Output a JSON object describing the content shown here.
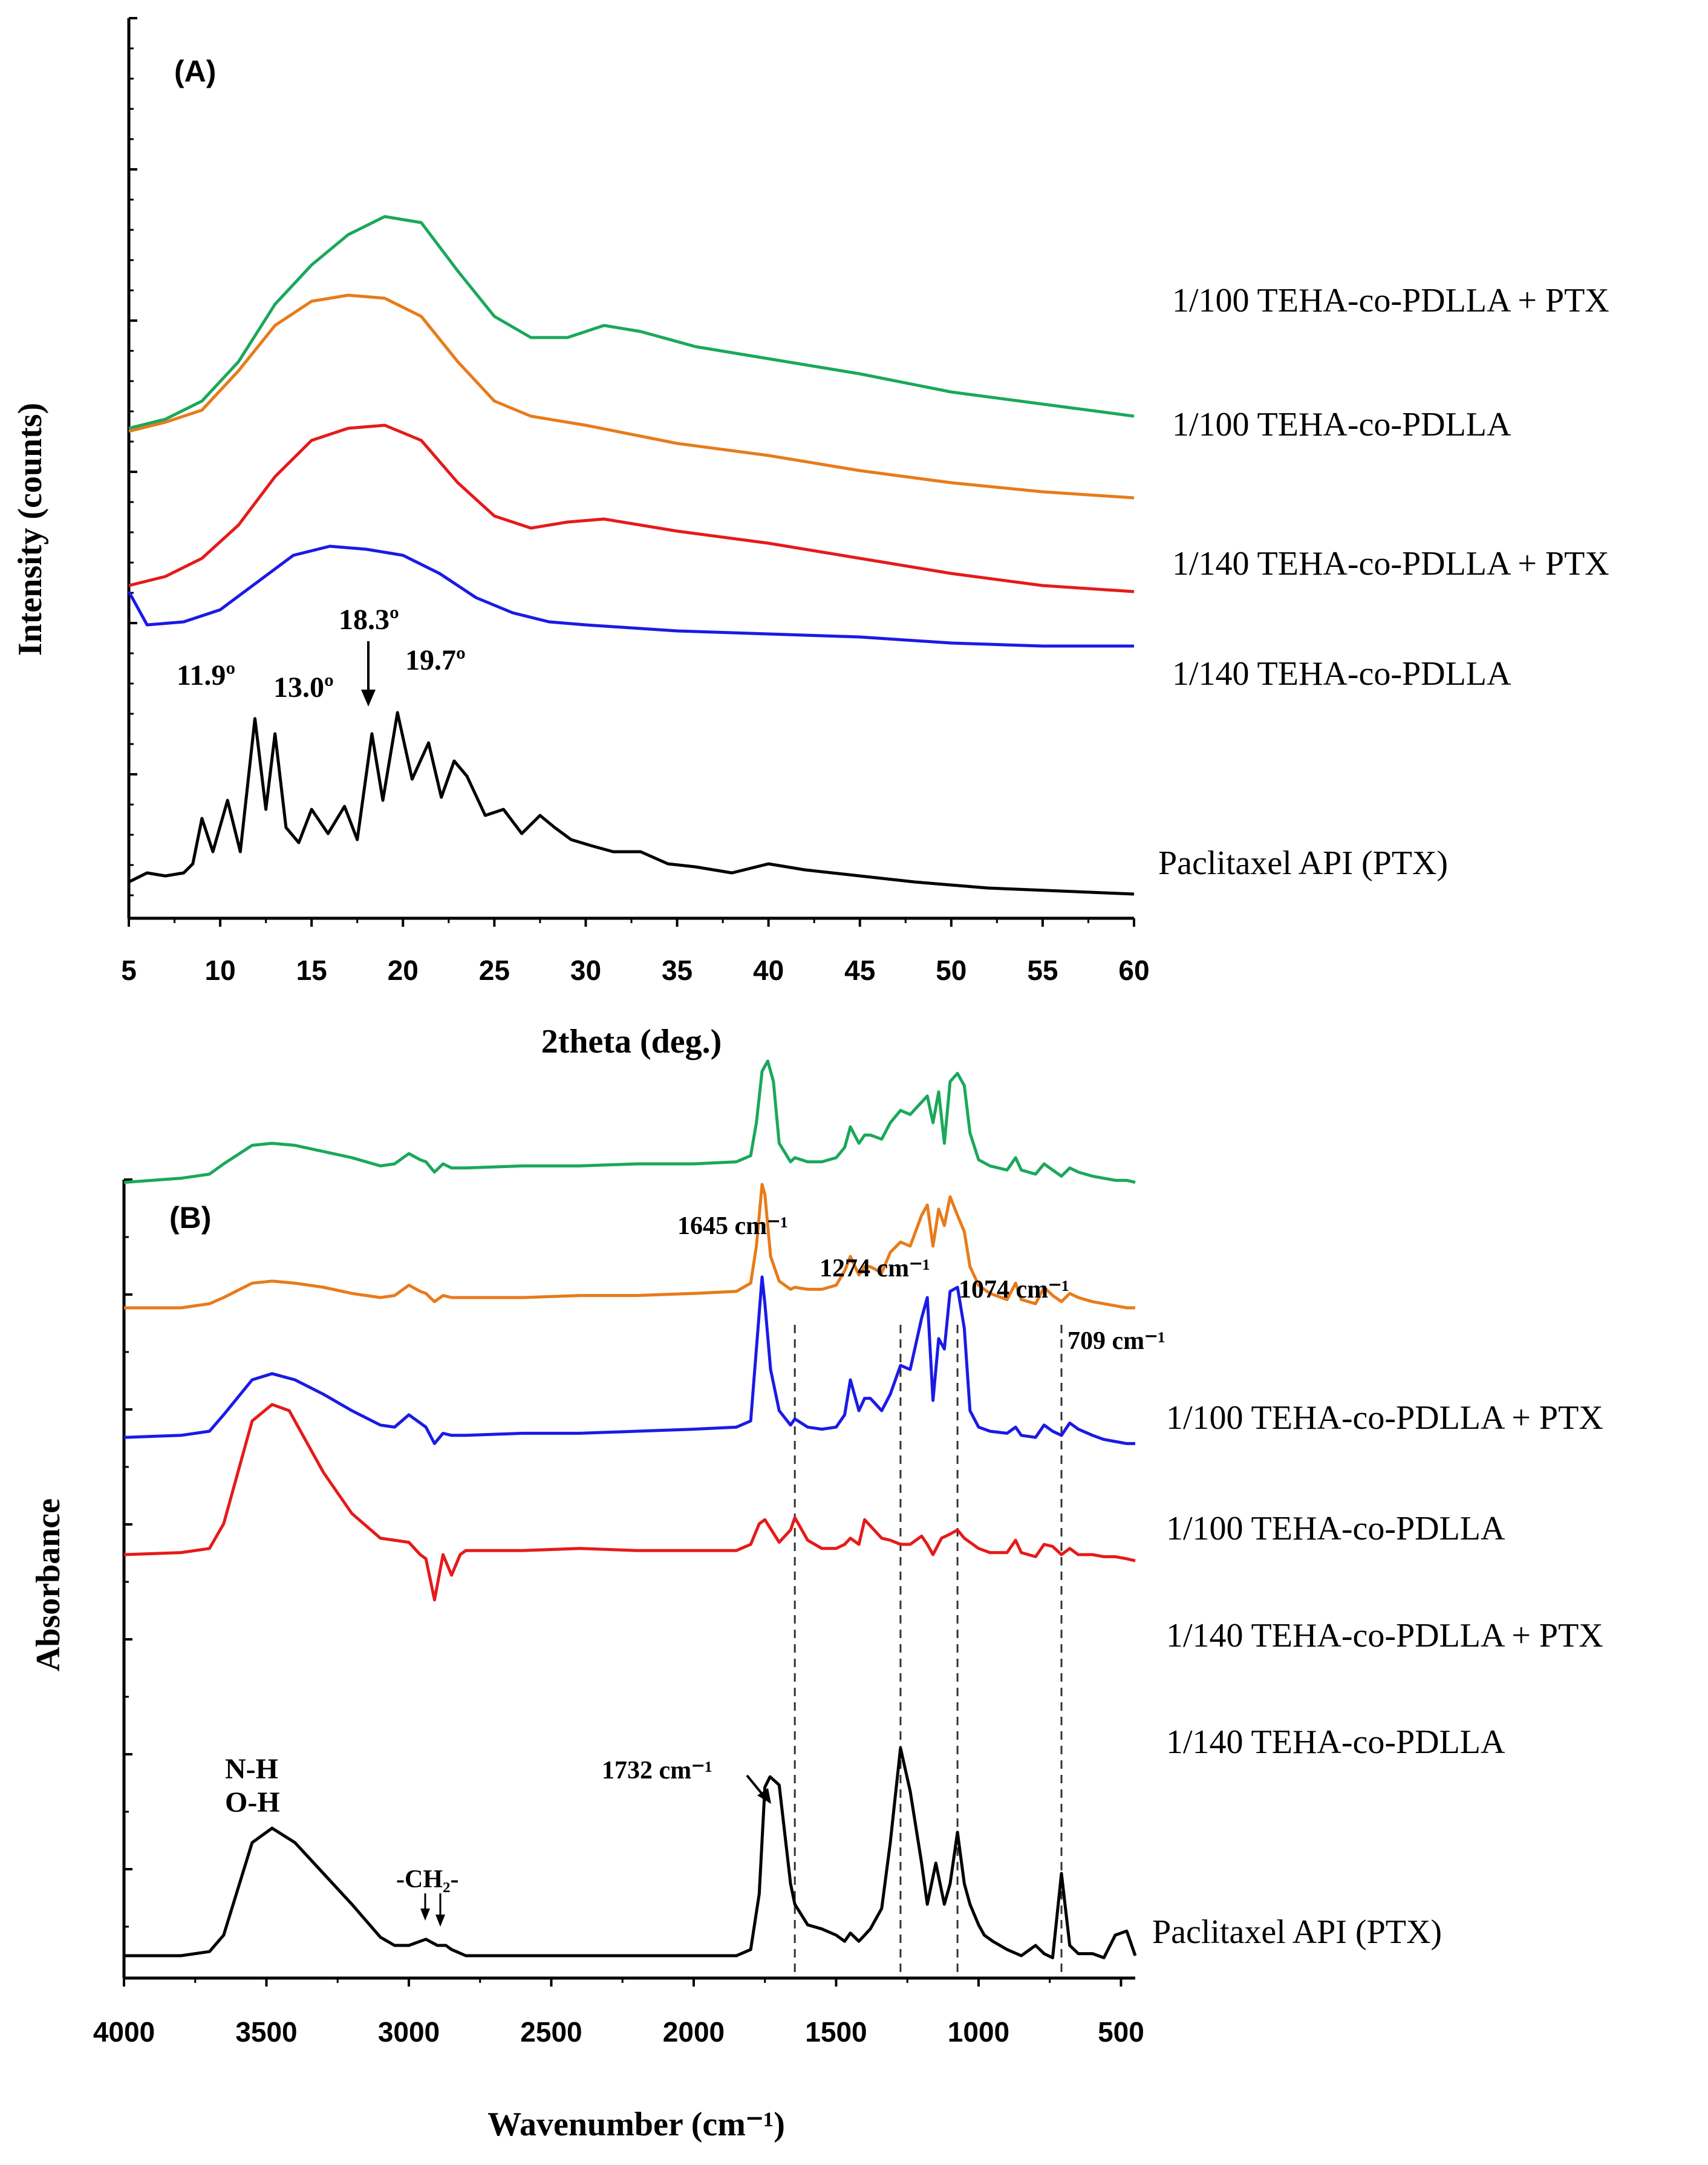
{
  "chart_data": [
    {
      "type": "line",
      "panel_label": "(A)",
      "xlabel": "2theta (deg.)",
      "ylabel": "Intensity (counts)",
      "xlim": [
        5,
        60
      ],
      "xticks": [
        "5",
        "10",
        "15",
        "20",
        "25",
        "30",
        "35",
        "40",
        "45",
        "50",
        "55",
        "60"
      ],
      "y_tick_labels_shown": false,
      "series": [
        {
          "name": "Paclitaxel API (PTX)",
          "color": "#000000",
          "x": [
            5,
            6,
            7,
            8,
            8.5,
            9.0,
            9.6,
            10.4,
            11.1,
            11.9,
            12.5,
            13.0,
            13.6,
            14.3,
            15.0,
            15.9,
            16.8,
            17.5,
            18.3,
            18.9,
            19.7,
            20.5,
            21.4,
            22.1,
            22.8,
            23.5,
            24.5,
            25.5,
            26.5,
            27.5,
            28.3,
            29.2,
            30.3,
            31.5,
            33.0,
            34.5,
            36.0,
            38.0,
            40.0,
            42.0,
            45.0,
            48.0,
            52.0,
            56.0,
            60.0
          ],
          "y": [
            6,
            9,
            8,
            9,
            12,
            27,
            16,
            33,
            16,
            60,
            30,
            55,
            24,
            19,
            30,
            22,
            31,
            20,
            55,
            33,
            62,
            40,
            52,
            34,
            46,
            41,
            28,
            30,
            22,
            28,
            24,
            20,
            18,
            16,
            16,
            12,
            11,
            9,
            12,
            10,
            8,
            6,
            4,
            3,
            2
          ]
        },
        {
          "name": "1/140 TEHA-co-PDLLA",
          "color": "#1a1ae6",
          "x": [
            5,
            6,
            8,
            10,
            12,
            14,
            16,
            18,
            20,
            22,
            24,
            26,
            28,
            30,
            35,
            40,
            45,
            50,
            55,
            60
          ],
          "y": [
            102,
            91,
            92,
            96,
            105,
            114,
            117,
            116,
            114,
            108,
            100,
            95,
            92,
            91,
            89,
            88,
            87,
            85,
            84,
            84
          ]
        },
        {
          "name": "1/140 TEHA-co-PDLLA + PTX",
          "color": "#e61a1a",
          "x": [
            5,
            7,
            9,
            11,
            13,
            15,
            17,
            19,
            21,
            23,
            25,
            27,
            29,
            31,
            33,
            35,
            40,
            45,
            50,
            55,
            60
          ],
          "y": [
            104,
            107,
            113,
            124,
            140,
            152,
            156,
            157,
            152,
            138,
            127,
            123,
            125,
            126,
            124,
            122,
            118,
            113,
            108,
            104,
            102
          ]
        },
        {
          "name": "1/100 TEHA-co-PDLLA",
          "color": "#e87b1a",
          "x": [
            5,
            7,
            9,
            11,
            13,
            15,
            17,
            19,
            21,
            23,
            25,
            27,
            30,
            35,
            40,
            45,
            50,
            55,
            60
          ],
          "y": [
            155,
            158,
            162,
            175,
            190,
            198,
            200,
            199,
            193,
            178,
            165,
            160,
            157,
            151,
            147,
            142,
            138,
            135,
            133
          ]
        },
        {
          "name": "1/100 TEHA-co-PDLLA + PTX",
          "color": "#1aa85a",
          "x": [
            5,
            7,
            9,
            11,
            13,
            15,
            17,
            19,
            21,
            23,
            25,
            27,
            29,
            31,
            33,
            36,
            40,
            45,
            50,
            55,
            60
          ],
          "y": [
            156,
            159,
            165,
            178,
            197,
            210,
            220,
            226,
            224,
            208,
            193,
            186,
            186,
            190,
            188,
            183,
            179,
            174,
            168,
            164,
            160
          ]
        }
      ],
      "annotations": [
        "11.9º",
        "13.0º",
        "18.3º",
        "19.7º"
      ]
    },
    {
      "type": "line",
      "panel_label": "(B)",
      "xlabel": "Wavenumber (cm⁻¹)",
      "ylabel": "Absorbance",
      "xlim": [
        4000,
        450
      ],
      "xticks": [
        "4000",
        "3500",
        "3000",
        "2500",
        "2000",
        "1500",
        "1000",
        "500"
      ],
      "y_tick_labels_shown": false,
      "vlines": [
        1645,
        1274,
        1074,
        709
      ],
      "series": [
        {
          "name": "Paclitaxel API (PTX)",
          "color": "#000000",
          "x": [
            4000,
            3800,
            3700,
            3650,
            3550,
            3480,
            3400,
            3300,
            3200,
            3100,
            3050,
            3000,
            2960,
            2940,
            2900,
            2870,
            2850,
            2800,
            2600,
            2400,
            2200,
            2000,
            1850,
            1800,
            1770,
            1750,
            1732,
            1700,
            1660,
            1645,
            1600,
            1550,
            1500,
            1470,
            1450,
            1420,
            1380,
            1340,
            1310,
            1274,
            1240,
            1200,
            1180,
            1150,
            1120,
            1100,
            1074,
            1050,
            1030,
            1000,
            980,
            950,
            900,
            850,
            800,
            770,
            740,
            709,
            680,
            650,
            600,
            560,
            520,
            480,
            450
          ],
          "y": [
            5,
            5,
            7,
            15,
            60,
            67,
            60,
            45,
            30,
            14,
            10,
            10,
            12,
            13,
            10,
            10,
            8,
            5,
            5,
            5,
            5,
            5,
            5,
            8,
            35,
            87,
            92,
            88,
            40,
            30,
            20,
            18,
            15,
            12,
            16,
            12,
            18,
            28,
            60,
            106,
            85,
            50,
            30,
            50,
            30,
            40,
            65,
            40,
            30,
            20,
            15,
            12,
            8,
            5,
            10,
            6,
            4,
            45,
            10,
            6,
            6,
            4,
            15,
            17,
            5
          ]
        },
        {
          "name": "1/140 TEHA-co-PDLLA",
          "color": "#e61a1a",
          "x": [
            4000,
            3800,
            3700,
            3650,
            3550,
            3480,
            3420,
            3380,
            3300,
            3200,
            3100,
            3000,
            2960,
            2940,
            2910,
            2880,
            2850,
            2820,
            2800,
            2600,
            2400,
            2200,
            2000,
            1850,
            1800,
            1770,
            1750,
            1700,
            1660,
            1645,
            1600,
            1550,
            1500,
            1470,
            1450,
            1420,
            1400,
            1380,
            1340,
            1310,
            1274,
            1240,
            1200,
            1180,
            1160,
            1130,
            1100,
            1074,
            1050,
            1030,
            1000,
            960,
            900,
            870,
            850,
            800,
            770,
            740,
            709,
            680,
            650,
            600,
            560,
            520,
            480,
            450
          ],
          "y": [
            200,
            201,
            203,
            215,
            265,
            273,
            270,
            260,
            240,
            220,
            208,
            206,
            200,
            198,
            178,
            200,
            190,
            200,
            202,
            202,
            203,
            202,
            202,
            202,
            205,
            215,
            217,
            206,
            212,
            218,
            207,
            203,
            203,
            205,
            208,
            205,
            217,
            214,
            208,
            207,
            205,
            205,
            209,
            205,
            200,
            208,
            210,
            212,
            208,
            206,
            203,
            201,
            201,
            207,
            201,
            199,
            205,
            204,
            200,
            203,
            200,
            200,
            199,
            199,
            198,
            197
          ]
        },
        {
          "name": "1/140 TEHA-co-PDLLA + PTX",
          "color": "#1a1ae6",
          "x": [
            4000,
            3800,
            3700,
            3650,
            3550,
            3480,
            3400,
            3300,
            3200,
            3100,
            3050,
            3000,
            2960,
            2940,
            2910,
            2880,
            2850,
            2800,
            2600,
            2400,
            2200,
            2000,
            1850,
            1800,
            1780,
            1760,
            1750,
            1730,
            1700,
            1660,
            1645,
            1600,
            1550,
            1500,
            1470,
            1450,
            1420,
            1400,
            1380,
            1340,
            1310,
            1274,
            1240,
            1200,
            1180,
            1160,
            1140,
            1120,
            1100,
            1074,
            1050,
            1030,
            1000,
            960,
            900,
            870,
            850,
            800,
            770,
            740,
            709,
            680,
            650,
            600,
            560,
            520,
            480,
            450
          ],
          "y": [
            257,
            258,
            260,
            268,
            285,
            288,
            285,
            278,
            270,
            263,
            262,
            268,
            264,
            262,
            254,
            259,
            258,
            258,
            259,
            259,
            260,
            261,
            262,
            265,
            300,
            335,
            322,
            290,
            270,
            263,
            266,
            262,
            261,
            262,
            268,
            285,
            270,
            276,
            276,
            270,
            278,
            292,
            290,
            315,
            325,
            275,
            305,
            300,
            328,
            330,
            310,
            270,
            262,
            260,
            259,
            262,
            258,
            257,
            263,
            260,
            258,
            264,
            261,
            258,
            256,
            255,
            254,
            254
          ]
        },
        {
          "name": "1/100 TEHA-co-PDLLA",
          "color": "#e87b1a",
          "x": [
            4000,
            3800,
            3700,
            3650,
            3550,
            3480,
            3400,
            3300,
            3200,
            3100,
            3050,
            3000,
            2960,
            2940,
            2910,
            2880,
            2850,
            2800,
            2600,
            2400,
            2200,
            2000,
            1850,
            1800,
            1780,
            1760,
            1750,
            1730,
            1700,
            1660,
            1645,
            1600,
            1550,
            1500,
            1470,
            1450,
            1420,
            1400,
            1380,
            1340,
            1310,
            1274,
            1240,
            1200,
            1180,
            1160,
            1140,
            1120,
            1100,
            1074,
            1050,
            1030,
            1000,
            960,
            900,
            870,
            850,
            800,
            770,
            740,
            709,
            680,
            650,
            600,
            560,
            520,
            480,
            450
          ],
          "y": [
            320,
            320,
            322,
            325,
            332,
            333,
            332,
            330,
            327,
            325,
            326,
            331,
            328,
            327,
            323,
            326,
            325,
            325,
            325,
            326,
            326,
            327,
            328,
            332,
            350,
            380,
            375,
            345,
            333,
            329,
            330,
            329,
            329,
            331,
            338,
            345,
            336,
            340,
            340,
            337,
            347,
            352,
            350,
            365,
            370,
            350,
            368,
            360,
            374,
            365,
            357,
            340,
            331,
            327,
            324,
            332,
            324,
            322,
            330,
            326,
            323,
            327,
            325,
            323,
            322,
            321,
            320,
            320
          ]
        },
        {
          "name": "1/100 TEHA-co-PDLLA + PTX",
          "color": "#1aa85a",
          "x": [
            4000,
            3800,
            3700,
            3650,
            3550,
            3480,
            3400,
            3300,
            3200,
            3100,
            3050,
            3000,
            2960,
            2940,
            2910,
            2880,
            2850,
            2800,
            2600,
            2400,
            2200,
            2000,
            1850,
            1800,
            1780,
            1760,
            1740,
            1720,
            1700,
            1660,
            1645,
            1600,
            1550,
            1500,
            1470,
            1450,
            1420,
            1400,
            1380,
            1340,
            1310,
            1274,
            1240,
            1200,
            1180,
            1160,
            1140,
            1120,
            1100,
            1074,
            1050,
            1030,
            1000,
            960,
            900,
            870,
            850,
            800,
            770,
            740,
            709,
            680,
            650,
            600,
            560,
            520,
            480,
            450
          ],
          "y": [
            381,
            383,
            385,
            390,
            399,
            400,
            399,
            396,
            393,
            389,
            390,
            395,
            392,
            391,
            386,
            390,
            388,
            388,
            389,
            389,
            390,
            390,
            391,
            394,
            410,
            435,
            440,
            430,
            400,
            391,
            393,
            391,
            391,
            393,
            398,
            408,
            400,
            404,
            404,
            402,
            410,
            416,
            414,
            420,
            423,
            410,
            425,
            400,
            430,
            434,
            428,
            405,
            392,
            389,
            387,
            393,
            387,
            385,
            390,
            387,
            384,
            388,
            386,
            384,
            383,
            382,
            382,
            381
          ]
        }
      ],
      "annotations": [
        "1645 cm⁻¹",
        "1274 cm⁻¹",
        "1074 cm⁻¹",
        "709 cm⁻¹",
        "1732 cm⁻¹",
        "N-H",
        "O-H",
        "-CH₂-"
      ]
    }
  ]
}
